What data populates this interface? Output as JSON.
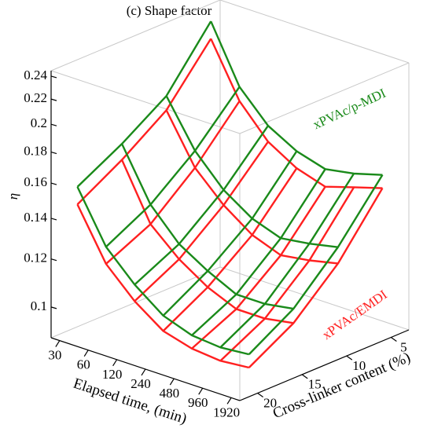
{
  "chart_data": {
    "type": "surface3d",
    "title": "(c) Shape factor",
    "x_label": "Elapsed time, (min)",
    "z_label": "Cross-linker content (%)",
    "y_label": "η",
    "x": [
      30,
      60,
      120,
      240,
      480,
      960,
      1920
    ],
    "z": [
      5,
      10,
      15,
      20
    ],
    "xlim": [
      24.4,
      2364
    ],
    "xlog": true,
    "xticks": [
      30,
      60,
      120,
      240,
      480,
      960,
      1920
    ],
    "zlim": [
      22,
      3
    ],
    "zticks": [
      5,
      10,
      15,
      20
    ],
    "ylim": [
      0.089,
      0.245
    ],
    "ylog": true,
    "yticks": [
      0.1,
      0.12,
      0.14,
      0.16,
      0.18,
      0.2,
      0.22,
      0.24
    ],
    "series": [
      {
        "name": "xPVAc/EMDI",
        "color": "#ff2020",
        "values": [
          [
            0.22,
            0.18,
            0.16,
            0.145
          ],
          [
            0.18,
            0.15,
            0.13,
            0.12
          ],
          [
            0.16,
            0.135,
            0.118,
            0.108
          ],
          [
            0.15,
            0.125,
            0.11,
            0.1
          ],
          [
            0.145,
            0.12,
            0.105,
            0.097
          ],
          [
            0.15,
            0.122,
            0.105,
            0.096
          ],
          [
            0.155,
            0.125,
            0.107,
            0.097
          ]
        ]
      },
      {
        "name": "xPVAc/p-MDI",
        "color": "#1a8a1a",
        "values": [
          [
            0.235,
            0.19,
            0.17,
            0.155
          ],
          [
            0.19,
            0.16,
            0.14,
            0.128
          ],
          [
            0.17,
            0.143,
            0.125,
            0.115
          ],
          [
            0.16,
            0.133,
            0.117,
            0.106
          ],
          [
            0.155,
            0.128,
            0.111,
            0.102
          ],
          [
            0.158,
            0.13,
            0.111,
            0.101
          ],
          [
            0.163,
            0.133,
            0.113,
            0.102
          ]
        ]
      }
    ]
  }
}
